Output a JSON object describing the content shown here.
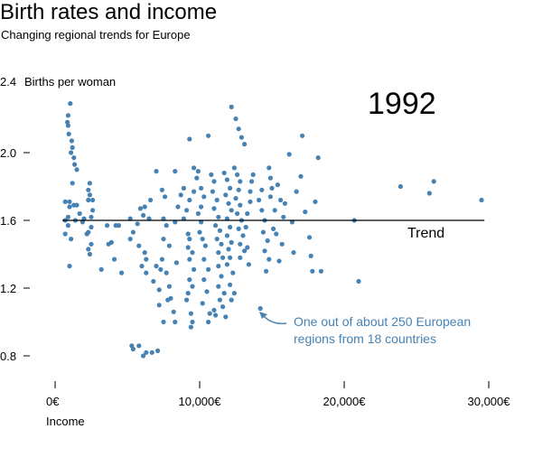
{
  "header": {
    "title": "Birth rates and income",
    "subtitle": "Changing regional trends for Europe"
  },
  "chart_data": {
    "type": "scatter",
    "title": "Birth rates and income",
    "subtitle": "Changing regional trends for Europe",
    "year": "1992",
    "xlabel": "Income",
    "ylabel": "Births per woman",
    "xlim": [
      0,
      30000
    ],
    "ylim": [
      0.7,
      2.4
    ],
    "x_ticks": [
      {
        "value": 0,
        "label": "0€"
      },
      {
        "value": 10000,
        "label": "10,000€"
      },
      {
        "value": 20000,
        "label": "20,000€"
      },
      {
        "value": 30000,
        "label": "30,000€"
      }
    ],
    "y_ticks": [
      {
        "value": 0.8,
        "label": "0.8"
      },
      {
        "value": 1.2,
        "label": "1.2"
      },
      {
        "value": 1.6,
        "label": "1.6"
      },
      {
        "value": 2.0,
        "label": "2.0"
      },
      {
        "value": 2.4,
        "label": "2.4"
      }
    ],
    "point_color": "#4682b4",
    "trend": {
      "label": "Trend",
      "x_start": 500,
      "x_end": 29700,
      "y": 1.6
    },
    "annotation": {
      "lines": [
        "One out of about 250 European",
        "regions from 18 countries"
      ],
      "x": 14400,
      "y": 1.08
    },
    "points": [
      [
        1050,
        2.29
      ],
      [
        900,
        2.22
      ],
      [
        850,
        2.18
      ],
      [
        900,
        2.16
      ],
      [
        950,
        2.11
      ],
      [
        1150,
        2.07
      ],
      [
        1200,
        2.03
      ],
      [
        1100,
        2.0
      ],
      [
        1300,
        1.97
      ],
      [
        1350,
        1.93
      ],
      [
        1500,
        1.9
      ],
      [
        2400,
        1.82
      ],
      [
        1200,
        1.82
      ],
      [
        2300,
        1.78
      ],
      [
        2400,
        1.75
      ],
      [
        2600,
        1.72
      ],
      [
        2300,
        1.72
      ],
      [
        1000,
        1.71
      ],
      [
        700,
        1.71
      ],
      [
        1500,
        1.69
      ],
      [
        1300,
        1.69
      ],
      [
        1000,
        1.68
      ],
      [
        2600,
        1.66
      ],
      [
        1700,
        1.64
      ],
      [
        2500,
        1.62
      ],
      [
        900,
        1.62
      ],
      [
        2000,
        1.61
      ],
      [
        1400,
        1.6
      ],
      [
        700,
        1.6
      ],
      [
        1900,
        1.59
      ],
      [
        900,
        1.57
      ],
      [
        2500,
        1.56
      ],
      [
        2300,
        1.53
      ],
      [
        2200,
        1.52
      ],
      [
        700,
        1.52
      ],
      [
        1100,
        1.49
      ],
      [
        2500,
        1.46
      ],
      [
        2300,
        1.43
      ],
      [
        2400,
        1.4
      ],
      [
        1000,
        1.33
      ],
      [
        3200,
        1.31
      ],
      [
        3600,
        1.57
      ],
      [
        3900,
        1.47
      ],
      [
        3700,
        1.46
      ],
      [
        4200,
        1.57
      ],
      [
        4400,
        1.57
      ],
      [
        4600,
        1.29
      ],
      [
        4100,
        1.37
      ],
      [
        5200,
        1.61
      ],
      [
        5700,
        1.58
      ],
      [
        5400,
        1.53
      ],
      [
        5200,
        1.49
      ],
      [
        5800,
        1.45
      ],
      [
        6200,
        1.41
      ],
      [
        6300,
        1.37
      ],
      [
        6000,
        1.33
      ],
      [
        6300,
        1.29
      ],
      [
        6100,
        1.63
      ],
      [
        6500,
        1.61
      ],
      [
        6200,
        1.68
      ],
      [
        6600,
        1.72
      ],
      [
        5900,
        1.67
      ],
      [
        7000,
        1.89
      ],
      [
        7400,
        1.78
      ],
      [
        7600,
        1.74
      ],
      [
        7500,
        1.61
      ],
      [
        7700,
        1.57
      ],
      [
        7500,
        1.49
      ],
      [
        7900,
        1.45
      ],
      [
        7400,
        1.37
      ],
      [
        7000,
        1.33
      ],
      [
        7300,
        1.31
      ],
      [
        7700,
        1.29
      ],
      [
        7900,
        1.21
      ],
      [
        7200,
        1.19
      ],
      [
        7800,
        1.13
      ],
      [
        8200,
        1.06
      ],
      [
        8400,
        1.35
      ],
      [
        8300,
        1.59
      ],
      [
        8500,
        1.68
      ],
      [
        8700,
        1.75
      ],
      [
        8300,
        1.89
      ],
      [
        8900,
        1.79
      ],
      [
        9300,
        1.72
      ],
      [
        9100,
        1.66
      ],
      [
        8900,
        1.61
      ],
      [
        9200,
        1.52
      ],
      [
        9300,
        1.49
      ],
      [
        9200,
        1.44
      ],
      [
        9500,
        1.41
      ],
      [
        9300,
        1.37
      ],
      [
        9600,
        1.31
      ],
      [
        9300,
        1.25
      ],
      [
        9500,
        1.21
      ],
      [
        9200,
        1.17
      ],
      [
        9100,
        1.13
      ],
      [
        9400,
        1.05
      ],
      [
        9500,
        1.0
      ],
      [
        9400,
        0.97
      ],
      [
        9300,
        2.08
      ],
      [
        9600,
        1.91
      ],
      [
        9900,
        1.89
      ],
      [
        9800,
        1.85
      ],
      [
        9600,
        1.77
      ],
      [
        10100,
        1.79
      ],
      [
        10300,
        1.74
      ],
      [
        10100,
        1.68
      ],
      [
        9900,
        1.64
      ],
      [
        10100,
        1.59
      ],
      [
        10000,
        1.53
      ],
      [
        10200,
        1.49
      ],
      [
        10400,
        1.45
      ],
      [
        10300,
        1.37
      ],
      [
        10600,
        1.31
      ],
      [
        10300,
        1.25
      ],
      [
        10500,
        1.18
      ],
      [
        10200,
        1.11
      ],
      [
        10700,
        1.05
      ],
      [
        10600,
        1.0
      ],
      [
        11000,
        1.07
      ],
      [
        11100,
        1.04
      ],
      [
        10600,
        2.1
      ],
      [
        10800,
        1.87
      ],
      [
        11000,
        1.83
      ],
      [
        10900,
        1.77
      ],
      [
        11200,
        1.72
      ],
      [
        11000,
        1.67
      ],
      [
        11300,
        1.62
      ],
      [
        11100,
        1.57
      ],
      [
        11400,
        1.54
      ],
      [
        11200,
        1.49
      ],
      [
        11500,
        1.46
      ],
      [
        11300,
        1.41
      ],
      [
        11600,
        1.38
      ],
      [
        11300,
        1.33
      ],
      [
        11500,
        1.27
      ],
      [
        11300,
        1.21
      ],
      [
        11700,
        1.17
      ],
      [
        11400,
        1.13
      ],
      [
        11600,
        1.09
      ],
      [
        11700,
        1.88
      ],
      [
        11900,
        1.84
      ],
      [
        12100,
        1.79
      ],
      [
        11800,
        1.75
      ],
      [
        12000,
        1.7
      ],
      [
        12200,
        1.66
      ],
      [
        11900,
        1.61
      ],
      [
        12100,
        1.56
      ],
      [
        11900,
        1.51
      ],
      [
        12200,
        1.47
      ],
      [
        12000,
        1.43
      ],
      [
        12100,
        1.38
      ],
      [
        11900,
        1.34
      ],
      [
        12300,
        1.29
      ],
      [
        12100,
        1.22
      ],
      [
        12400,
        1.17
      ],
      [
        12200,
        1.13
      ],
      [
        11800,
        1.03
      ],
      [
        12200,
        2.27
      ],
      [
        12500,
        2.2
      ],
      [
        12700,
        2.14
      ],
      [
        12900,
        2.09
      ],
      [
        13100,
        2.05
      ],
      [
        12400,
        1.91
      ],
      [
        12600,
        1.87
      ],
      [
        12800,
        1.83
      ],
      [
        12700,
        1.78
      ],
      [
        12500,
        1.73
      ],
      [
        12800,
        1.69
      ],
      [
        12600,
        1.64
      ],
      [
        12900,
        1.6
      ],
      [
        12700,
        1.55
      ],
      [
        13000,
        1.51
      ],
      [
        12800,
        1.46
      ],
      [
        13100,
        1.42
      ],
      [
        12800,
        1.38
      ],
      [
        13300,
        1.44
      ],
      [
        13200,
        1.56
      ],
      [
        13300,
        1.64
      ],
      [
        13500,
        1.71
      ],
      [
        13500,
        1.77
      ],
      [
        13600,
        1.83
      ],
      [
        13700,
        1.87
      ],
      [
        13400,
        1.34
      ],
      [
        14300,
        1.78
      ],
      [
        14100,
        1.72
      ],
      [
        14300,
        1.66
      ],
      [
        14500,
        1.6
      ],
      [
        14400,
        1.53
      ],
      [
        14700,
        1.48
      ],
      [
        14500,
        1.42
      ],
      [
        14800,
        1.37
      ],
      [
        14600,
        1.3
      ],
      [
        14200,
        1.08
      ],
      [
        14800,
        1.91
      ],
      [
        14900,
        1.85
      ],
      [
        15000,
        1.79
      ],
      [
        14900,
        1.74
      ],
      [
        15200,
        1.66
      ],
      [
        15100,
        1.55
      ],
      [
        15300,
        1.52
      ],
      [
        15500,
        1.36
      ],
      [
        15700,
        1.46
      ],
      [
        15400,
        1.81
      ],
      [
        15600,
        1.72
      ],
      [
        15800,
        1.62
      ],
      [
        15900,
        1.7
      ],
      [
        16200,
        1.99
      ],
      [
        16700,
        1.77
      ],
      [
        16400,
        1.59
      ],
      [
        16500,
        1.41
      ],
      [
        17100,
        2.1
      ],
      [
        17000,
        1.86
      ],
      [
        17300,
        1.65
      ],
      [
        17600,
        1.5
      ],
      [
        17700,
        1.39
      ],
      [
        17800,
        1.3
      ],
      [
        18200,
        1.97
      ],
      [
        18000,
        1.71
      ],
      [
        18400,
        1.3
      ],
      [
        20700,
        1.6
      ],
      [
        21000,
        1.24
      ],
      [
        23900,
        1.8
      ],
      [
        26200,
        1.83
      ],
      [
        25900,
        1.76
      ],
      [
        29500,
        1.72
      ],
      [
        5300,
        0.86
      ],
      [
        5400,
        0.84
      ],
      [
        5800,
        0.86
      ],
      [
        6300,
        0.82
      ],
      [
        6700,
        0.82
      ],
      [
        7100,
        0.83
      ],
      [
        6100,
        0.8
      ],
      [
        7500,
        1.0
      ],
      [
        8300,
        1.0
      ],
      [
        8000,
        1.14
      ],
      [
        7200,
        1.1
      ],
      [
        6800,
        1.24
      ]
    ]
  }
}
